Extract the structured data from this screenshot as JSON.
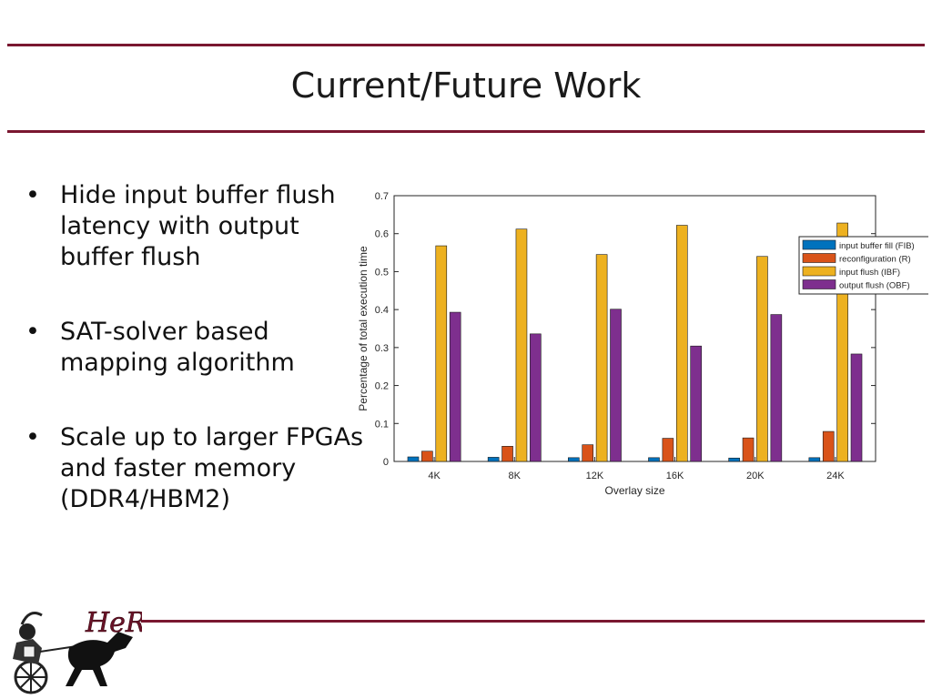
{
  "slide": {
    "title": "Current/Future Work",
    "bullets": [
      {
        "marker": "•",
        "text": "Hide input buffer flush latency with output buffer flush"
      },
      {
        "marker": "•",
        "text": "SAT-solver based mapping algorithm"
      },
      {
        "marker": "•",
        "text": "Scale up to larger FPGAs and faster memory (DDR4/HBM2)"
      }
    ],
    "logo_text": "HeRC",
    "accent_color": "#7a1730"
  },
  "chart_data": {
    "type": "bar",
    "categories": [
      "4K",
      "8K",
      "12K",
      "16K",
      "20K",
      "24K"
    ],
    "series": [
      {
        "name": "input buffer fill (FIB)",
        "color": "#0072bd",
        "values": [
          0.012,
          0.011,
          0.01,
          0.01,
          0.009,
          0.01
        ]
      },
      {
        "name": "reconfiguration (R)",
        "color": "#d95319",
        "values": [
          0.027,
          0.04,
          0.044,
          0.061,
          0.062,
          0.079
        ]
      },
      {
        "name": "input flush (IBF)",
        "color": "#edb120",
        "values": [
          0.568,
          0.612,
          0.545,
          0.622,
          0.54,
          0.628
        ]
      },
      {
        "name": "output flush (OBF)",
        "color": "#7e2f8e",
        "values": [
          0.393,
          0.336,
          0.401,
          0.304,
          0.387,
          0.283
        ]
      }
    ],
    "xlabel": "Overlay size",
    "ylabel": "Percentage of total execution time",
    "ylim": [
      0,
      0.7
    ],
    "yticks": [
      "0",
      "0.1",
      "0.2",
      "0.3",
      "0.4",
      "0.5",
      "0.6",
      "0.7"
    ],
    "grid": false,
    "legend": "top-right"
  }
}
